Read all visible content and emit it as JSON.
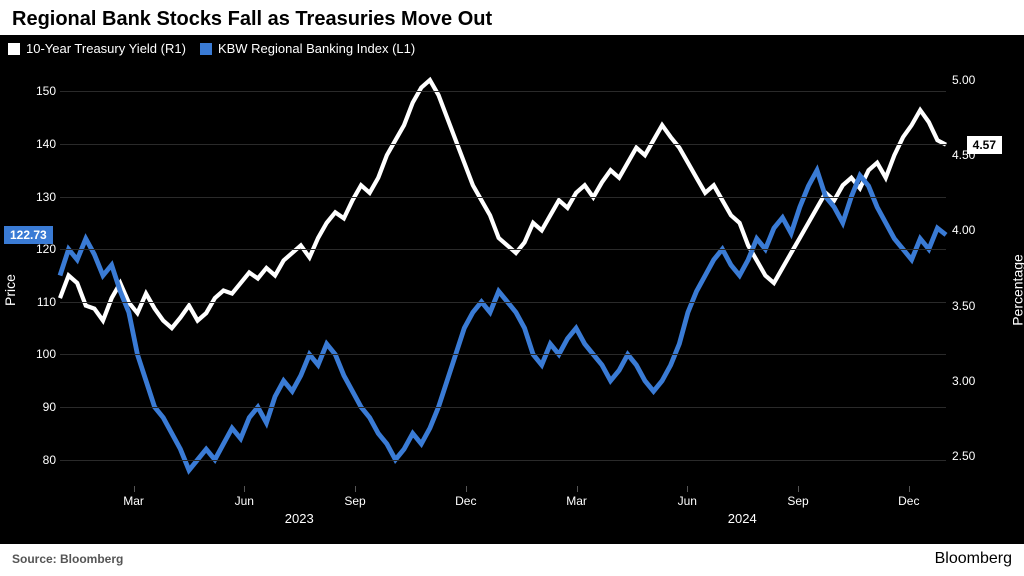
{
  "title": "Regional Bank Stocks Fall as Treasuries Move Out",
  "source_label": "Source: Bloomberg",
  "brand": "Bloomberg",
  "chart": {
    "type": "line-dual-axis",
    "background_color": "#000000",
    "grid_color": "#2a2a2a",
    "text_color": "#ffffff",
    "left_axis": {
      "title": "Price",
      "min": 75,
      "max": 155,
      "ticks": [
        80,
        90,
        100,
        110,
        120,
        130,
        140,
        150
      ],
      "tick_labels": [
        "80",
        "90",
        "100",
        "110",
        "120",
        "130",
        "140",
        "150"
      ]
    },
    "right_axis": {
      "title": "Percentage",
      "min": 2.3,
      "max": 5.1,
      "ticks": [
        2.5,
        3.0,
        3.5,
        4.0,
        4.5,
        5.0
      ],
      "tick_labels": [
        "2.50",
        "3.00",
        "3.50",
        "4.00",
        "4.50",
        "5.00"
      ]
    },
    "x_axis": {
      "months": [
        {
          "label": "Mar",
          "pos": 0.083
        },
        {
          "label": "Jun",
          "pos": 0.208
        },
        {
          "label": "Sep",
          "pos": 0.333
        },
        {
          "label": "Dec",
          "pos": 0.458
        },
        {
          "label": "Mar",
          "pos": 0.583
        },
        {
          "label": "Jun",
          "pos": 0.708
        },
        {
          "label": "Sep",
          "pos": 0.833
        },
        {
          "label": "Dec",
          "pos": 0.958
        }
      ],
      "years": [
        {
          "label": "2023",
          "pos": 0.27
        },
        {
          "label": "2024",
          "pos": 0.77
        }
      ]
    },
    "legend": [
      {
        "label": "10-Year Treasury Yield (R1)",
        "color": "#ffffff"
      },
      {
        "label": "KBW Regional Banking Index (L1)",
        "color": "#3a7bd5"
      }
    ],
    "series": [
      {
        "name": "treasury-yield",
        "axis": "right",
        "color": "#ffffff",
        "line_width": 1.4,
        "last_value_label": "4.57",
        "last_badge_bg": "#ffffff",
        "last_badge_fg": "#000000",
        "data": [
          3.55,
          3.7,
          3.65,
          3.5,
          3.48,
          3.4,
          3.55,
          3.65,
          3.52,
          3.45,
          3.58,
          3.48,
          3.4,
          3.35,
          3.42,
          3.5,
          3.4,
          3.45,
          3.55,
          3.6,
          3.58,
          3.65,
          3.72,
          3.68,
          3.75,
          3.7,
          3.8,
          3.85,
          3.9,
          3.82,
          3.95,
          4.05,
          4.12,
          4.08,
          4.2,
          4.3,
          4.25,
          4.35,
          4.5,
          4.6,
          4.7,
          4.85,
          4.95,
          5.0,
          4.9,
          4.75,
          4.6,
          4.45,
          4.3,
          4.2,
          4.1,
          3.95,
          3.9,
          3.85,
          3.92,
          4.05,
          4.0,
          4.1,
          4.2,
          4.15,
          4.25,
          4.3,
          4.22,
          4.32,
          4.4,
          4.35,
          4.45,
          4.55,
          4.5,
          4.6,
          4.7,
          4.62,
          4.55,
          4.45,
          4.35,
          4.25,
          4.3,
          4.2,
          4.1,
          4.05,
          3.9,
          3.8,
          3.7,
          3.65,
          3.75,
          3.85,
          3.95,
          4.05,
          4.15,
          4.25,
          4.2,
          4.3,
          4.35,
          4.28,
          4.4,
          4.45,
          4.35,
          4.5,
          4.62,
          4.7,
          4.8,
          4.72,
          4.6,
          4.57
        ]
      },
      {
        "name": "kbw-index",
        "axis": "left",
        "color": "#3a7bd5",
        "line_width": 1.6,
        "last_value_label": "122.73",
        "last_badge_bg": "#3a7bd5",
        "last_badge_fg": "#ffffff",
        "data": [
          115,
          120,
          118,
          122,
          119,
          115,
          117,
          112,
          108,
          100,
          95,
          90,
          88,
          85,
          82,
          78,
          80,
          82,
          80,
          83,
          86,
          84,
          88,
          90,
          87,
          92,
          95,
          93,
          96,
          100,
          98,
          102,
          100,
          96,
          93,
          90,
          88,
          85,
          83,
          80,
          82,
          85,
          83,
          86,
          90,
          95,
          100,
          105,
          108,
          110,
          108,
          112,
          110,
          108,
          105,
          100,
          98,
          102,
          100,
          103,
          105,
          102,
          100,
          98,
          95,
          97,
          100,
          98,
          95,
          93,
          95,
          98,
          102,
          108,
          112,
          115,
          118,
          120,
          117,
          115,
          118,
          122,
          120,
          124,
          126,
          123,
          128,
          132,
          135,
          130,
          128,
          125,
          130,
          134,
          132,
          128,
          125,
          122,
          120,
          118,
          122,
          120,
          124,
          122.73
        ]
      }
    ]
  }
}
